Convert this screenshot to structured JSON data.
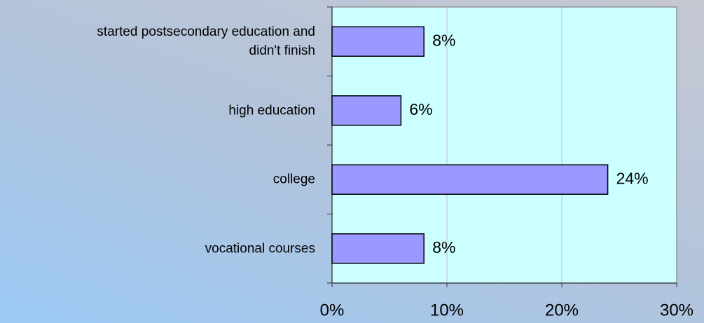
{
  "chart_data": {
    "type": "barh",
    "categories": [
      "started postsecondary education and\ndidn't finish",
      "high education",
      "college",
      "vocational courses"
    ],
    "values": [
      8,
      6,
      24,
      8
    ],
    "value_labels": [
      "8%",
      "6%",
      "24%",
      "8%"
    ],
    "color": "#9999ff",
    "xlim": [
      0,
      30
    ],
    "xticks": [
      {
        "value": 0,
        "label": "0%"
      },
      {
        "value": 10,
        "label": "10%"
      },
      {
        "value": 20,
        "label": "20%"
      },
      {
        "value": 30,
        "label": "30%"
      }
    ],
    "grid": true
  }
}
